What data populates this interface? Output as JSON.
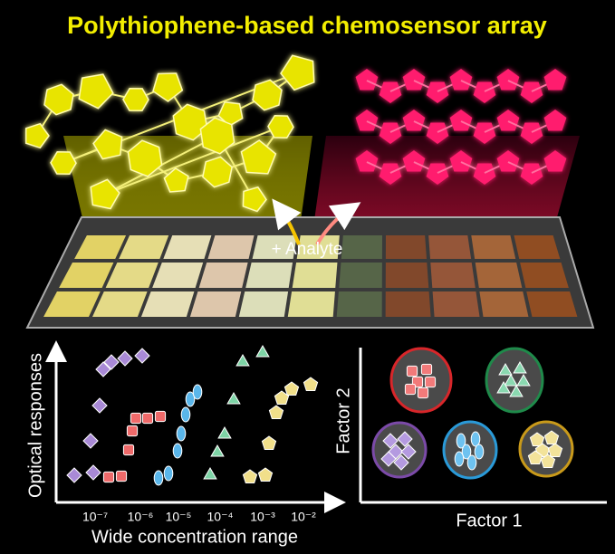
{
  "title": "Polythiophene-based chemosensor array",
  "analyte_label": "+ Analyte",
  "left_plot": {
    "y_label": "Optical responses",
    "x_label": "Wide concentration range",
    "x_ticks": [
      "10⁻⁷",
      "10⁻⁶",
      "10⁻⁵",
      "10⁻⁴",
      "10⁻³",
      "10⁻²"
    ]
  },
  "right_plot": {
    "y_label": "Factor 2",
    "x_label": "Factor 1"
  }
}
